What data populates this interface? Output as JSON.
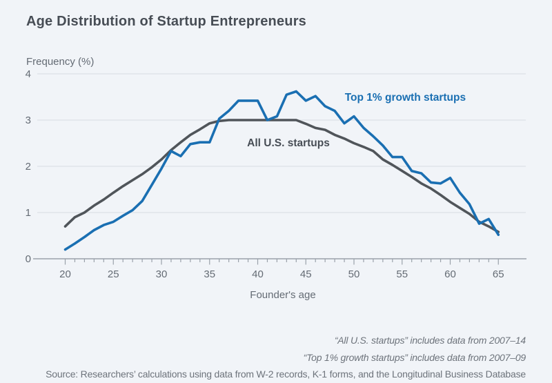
{
  "title": "Age Distribution of Startup Entrepreneurs",
  "chart_data": {
    "type": "line",
    "x": [
      20,
      21,
      22,
      23,
      24,
      25,
      26,
      27,
      28,
      29,
      30,
      31,
      32,
      33,
      34,
      35,
      36,
      37,
      38,
      39,
      40,
      41,
      42,
      43,
      44,
      45,
      46,
      47,
      48,
      49,
      50,
      51,
      52,
      53,
      54,
      55,
      56,
      57,
      58,
      59,
      60,
      61,
      62,
      63,
      64,
      65
    ],
    "series": [
      {
        "name": "All U.S. startups",
        "color": "#50555a",
        "values": [
          0.7,
          0.9,
          1.0,
          1.15,
          1.28,
          1.43,
          1.57,
          1.7,
          1.83,
          1.98,
          2.15,
          2.35,
          2.52,
          2.68,
          2.8,
          2.93,
          2.98,
          3.0,
          3.0,
          3.0,
          3.0,
          3.0,
          3.0,
          3.0,
          3.0,
          2.92,
          2.83,
          2.79,
          2.68,
          2.6,
          2.5,
          2.42,
          2.33,
          2.15,
          2.03,
          1.9,
          1.77,
          1.63,
          1.52,
          1.38,
          1.23,
          1.1,
          0.97,
          0.8,
          0.7,
          0.58
        ]
      },
      {
        "name": "Top 1% growth startups",
        "color": "#1a6fb2",
        "values": [
          0.2,
          0.33,
          0.47,
          0.62,
          0.73,
          0.8,
          0.93,
          1.05,
          1.25,
          1.6,
          1.95,
          2.33,
          2.22,
          2.48,
          2.52,
          2.52,
          3.03,
          3.2,
          3.42,
          3.42,
          3.42,
          3.0,
          3.08,
          3.55,
          3.62,
          3.42,
          3.52,
          3.3,
          3.2,
          2.93,
          3.08,
          2.83,
          2.65,
          2.45,
          2.2,
          2.2,
          1.9,
          1.85,
          1.65,
          1.63,
          1.75,
          1.43,
          1.18,
          0.76,
          0.86,
          0.52
        ]
      }
    ],
    "title": "Age Distribution of Startup Entrepreneurs",
    "ylabel": "Frequency (%)",
    "xlabel": "Founder's age",
    "ylim": [
      0,
      4
    ],
    "yticks": [
      0,
      1,
      2,
      3,
      4
    ],
    "xticks_labeled": [
      20,
      25,
      30,
      35,
      40,
      45,
      50,
      55,
      60,
      65
    ],
    "grid": "horizontal",
    "legend_position": "inline-annotations",
    "annotations": [
      {
        "text": "All U.S. startups",
        "age": 38.9,
        "value": 2.43,
        "color": "#474d55"
      },
      {
        "text": "Top 1% growth startups",
        "age": 49.05,
        "value": 3.42,
        "color": "#1a6fb2"
      }
    ],
    "style": {
      "background": "#f1f4f8",
      "grid": "#d8dce2",
      "axis": "#9aa1aa",
      "text": "#646b74"
    }
  },
  "notes": [
    "“All U.S. startups” includes data from 2007–14",
    "“Top 1% growth startups” includes data from 2007–09"
  ],
  "source": "Source: Researchers’ calculations using data from W-2 records, K-1 forms, and the Longitudinal Business Database"
}
